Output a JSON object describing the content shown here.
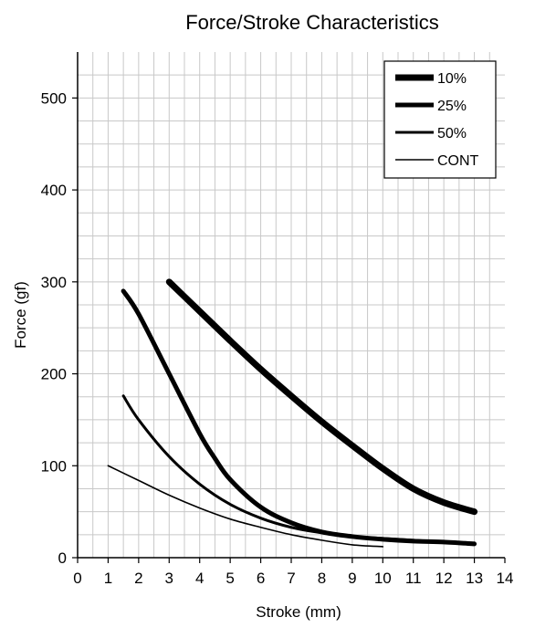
{
  "chart_data": {
    "type": "line",
    "title": "Force/Stroke Characteristics",
    "xlabel": "Stroke (mm)",
    "ylabel": "Force (gf)",
    "xlim": [
      0,
      14
    ],
    "ylim": [
      0,
      550
    ],
    "xticks": [
      "0",
      "1",
      "2",
      "3",
      "4",
      "5",
      "6",
      "7",
      "8",
      "9",
      "10",
      "11",
      "12",
      "13",
      "14"
    ],
    "yticks": [
      "0",
      "100",
      "200",
      "300",
      "400",
      "500"
    ],
    "grid": true,
    "legend_position": "top-right",
    "series": [
      {
        "name": "10%",
        "points": [
          [
            3,
            300
          ],
          [
            4,
            268
          ],
          [
            5,
            236
          ],
          [
            6,
            205
          ],
          [
            7,
            176
          ],
          [
            8,
            148
          ],
          [
            9,
            122
          ],
          [
            10,
            97
          ],
          [
            11,
            75
          ],
          [
            12,
            60
          ],
          [
            13,
            50
          ]
        ]
      },
      {
        "name": "25%",
        "points": [
          [
            1.5,
            290
          ],
          [
            2,
            265
          ],
          [
            3,
            200
          ],
          [
            4,
            135
          ],
          [
            4.5,
            108
          ],
          [
            5,
            85
          ],
          [
            6,
            55
          ],
          [
            7,
            38
          ],
          [
            8,
            28
          ],
          [
            9,
            23
          ],
          [
            10,
            20
          ],
          [
            11,
            18
          ],
          [
            12,
            17
          ],
          [
            13,
            15
          ]
        ]
      },
      {
        "name": "50%",
        "points": [
          [
            1.5,
            176
          ],
          [
            2,
            150
          ],
          [
            3,
            110
          ],
          [
            4,
            80
          ],
          [
            5,
            58
          ],
          [
            6,
            43
          ],
          [
            7,
            33
          ],
          [
            8,
            27
          ],
          [
            9,
            23
          ],
          [
            10,
            21
          ],
          [
            11,
            19
          ],
          [
            12,
            17
          ],
          [
            13,
            16
          ]
        ]
      },
      {
        "name": "CONT",
        "points": [
          [
            1,
            100
          ],
          [
            2,
            84
          ],
          [
            3,
            68
          ],
          [
            4,
            54
          ],
          [
            5,
            42
          ],
          [
            6,
            33
          ],
          [
            7,
            25
          ],
          [
            8,
            19
          ],
          [
            9,
            14
          ],
          [
            10,
            12
          ]
        ]
      }
    ]
  }
}
